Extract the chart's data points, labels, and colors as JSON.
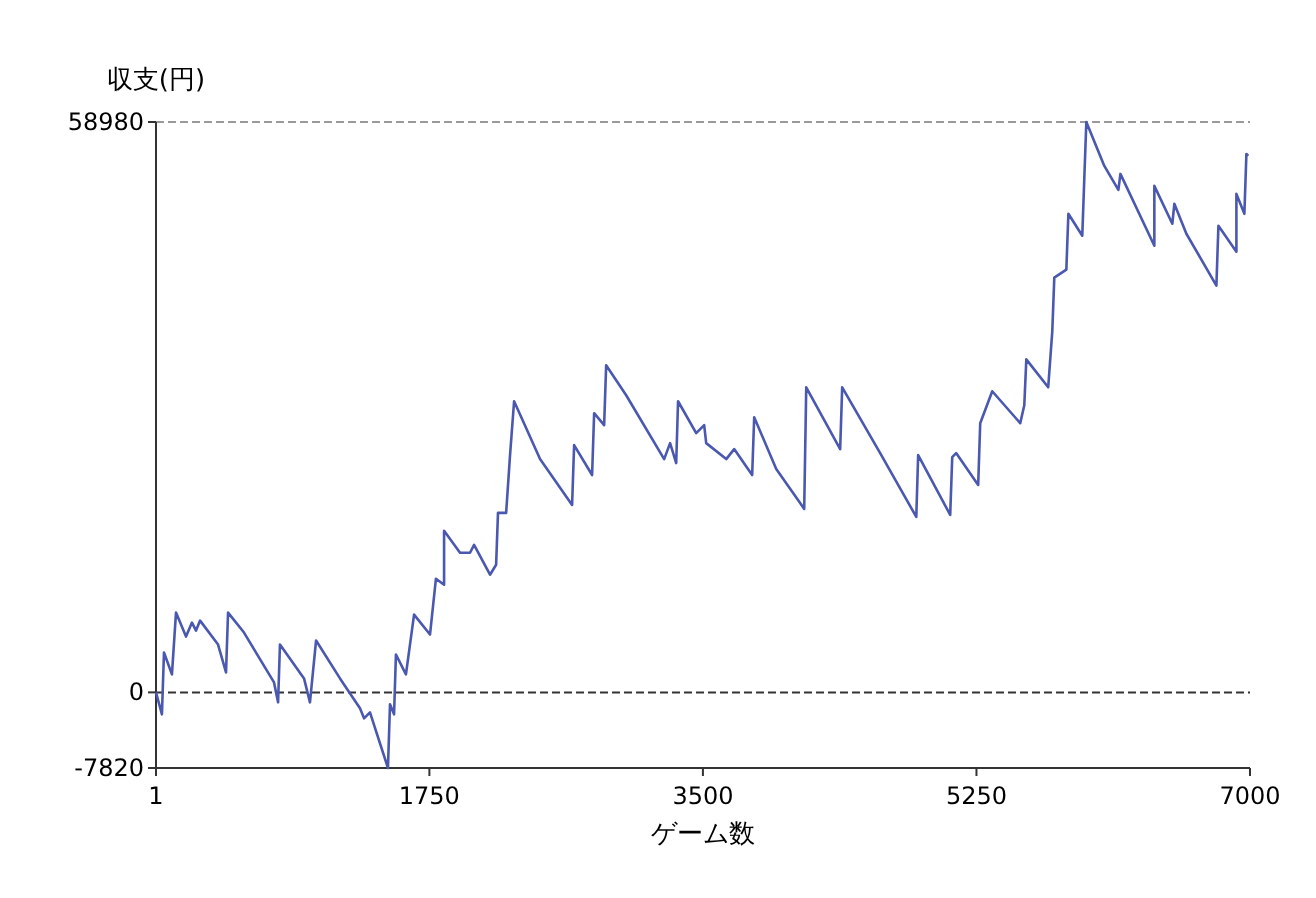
{
  "chart_data": {
    "type": "line",
    "ylabel": "収支(円)",
    "xlabel": "ゲーム数",
    "x": [
      1,
      39,
      52,
      103,
      129,
      193,
      231,
      257,
      283,
      398,
      449,
      462,
      564,
      756,
      782,
      794,
      948,
      986,
      1025,
      1178,
      1306,
      1332,
      1370,
      1485,
      1498,
      1524,
      1536,
      1600,
      1652,
      1754,
      1792,
      1844,
      1844,
      1946,
      2010,
      2036,
      2138,
      2177,
      2189,
      2241,
      2266,
      2292,
      2458,
      2663,
      2676,
      2791,
      2804,
      2868,
      2881,
      3009,
      3252,
      3290,
      3329,
      3341,
      3457,
      3508,
      3521,
      3649,
      3700,
      3815,
      3828,
      3969,
      4122,
      4148,
      4161,
      4378,
      4391,
      4634,
      4865,
      4877,
      5082,
      5095,
      5120,
      5261,
      5274,
      5351,
      5530,
      5556,
      5569,
      5709,
      5735,
      5748,
      5825,
      5838,
      5927,
      5940,
      5953,
      6068,
      6158,
      6171,
      6388,
      6388,
      6503,
      6516,
      6593,
      6785,
      6798,
      6913,
      6913,
      6964,
      6977,
      6989
    ],
    "series": [
      {
        "color": "#4a58b0",
        "values": [
          0,
          -2268,
          4124,
          1856,
          8248,
          5774,
          7217,
          6392,
          7423,
          4949,
          2062,
          8248,
          6186,
          1031,
          -1031,
          4949,
          1443,
          -1031,
          5361,
          1443,
          -1650,
          -2681,
          -2062,
          -7820,
          -1237,
          -2268,
          3918,
          1856,
          8042,
          5980,
          11753,
          11135,
          16702,
          14434,
          14434,
          15259,
          12166,
          13197,
          18558,
          18558,
          24538,
          30105,
          24125,
          19383,
          25569,
          22476,
          28868,
          27631,
          33817,
          30724,
          24125,
          25775,
          23713,
          30105,
          26806,
          27631,
          25775,
          24125,
          25156,
          22476,
          28456,
          23094,
          19589,
          18970,
          31549,
          25156,
          31549,
          24744,
          18146,
          24538,
          18352,
          24332,
          24744,
          21445,
          27837,
          31136,
          27837,
          29693,
          34435,
          31549,
          37322,
          42890,
          43714,
          49488,
          47220,
          53200,
          58980,
          54437,
          51962,
          53612,
          46189,
          52375,
          48457,
          50519,
          47426,
          42065,
          48251,
          45570,
          51550,
          49488,
          55674,
          55468
        ]
      }
    ],
    "xlim": [
      1,
      7000
    ],
    "xticks": [
      1,
      1750,
      3500,
      5250,
      7000
    ],
    "ylim": [
      -7820,
      58980
    ],
    "yticks": [
      -7820,
      0,
      58980
    ],
    "marker": "none",
    "line_style": "solid",
    "ref_lines": [
      {
        "axis": "y",
        "value": 58980,
        "color": "#999999",
        "line_style": "dashed"
      },
      {
        "axis": "y",
        "value": 0,
        "color": "#333333",
        "line_style": "dashed"
      }
    ]
  }
}
